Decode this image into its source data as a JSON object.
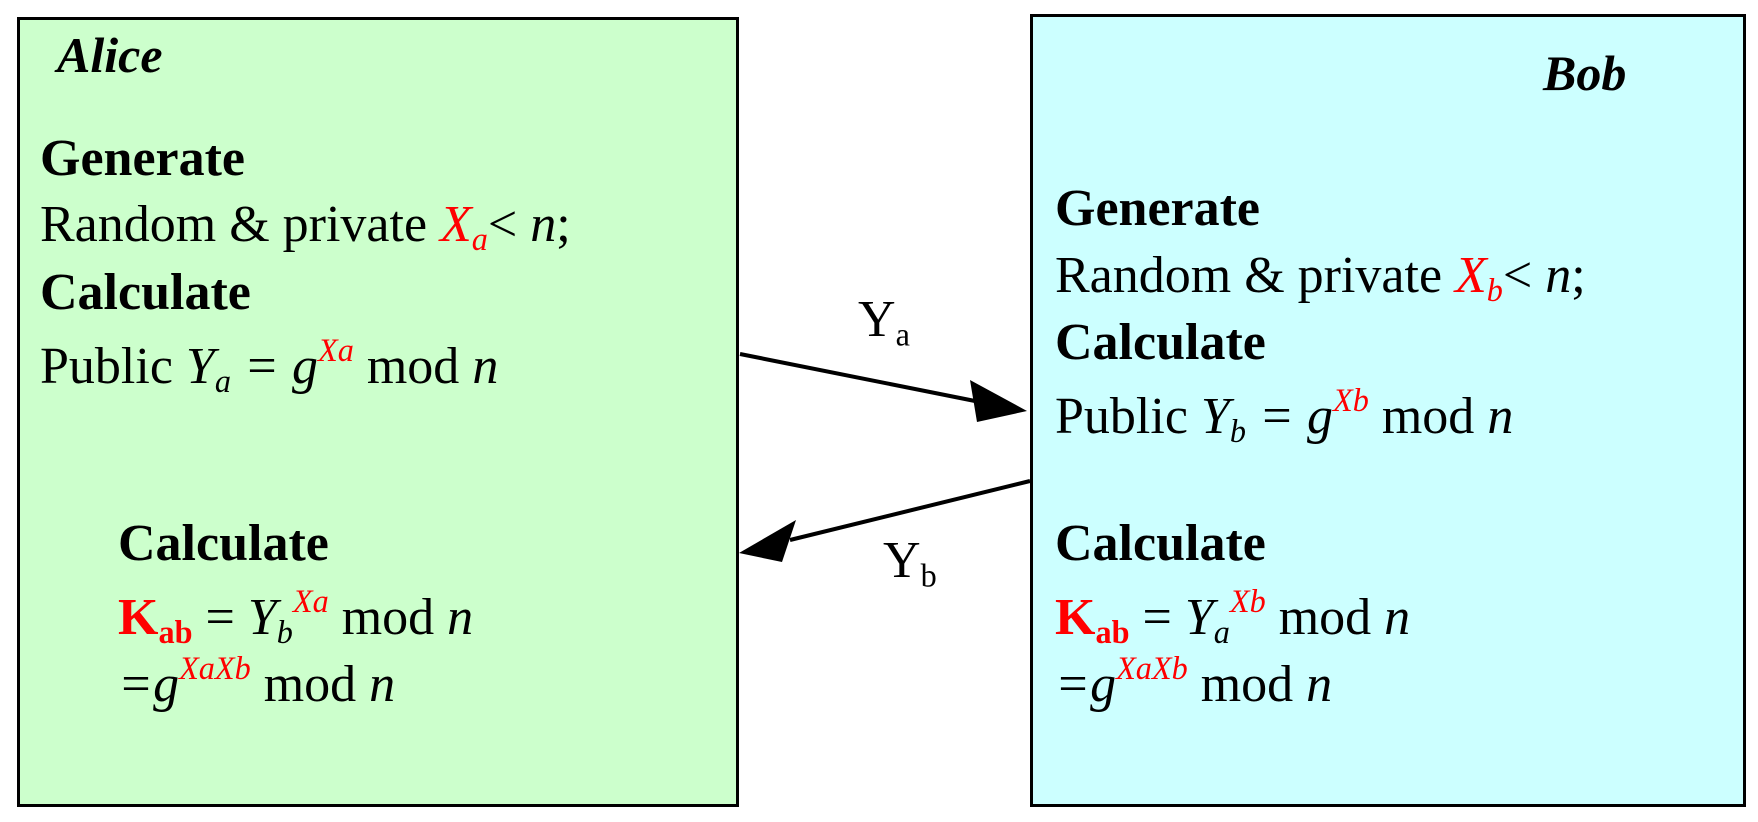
{
  "alice": {
    "name": "Alice",
    "generate_heading": "Generate",
    "random_text": "Random & private ",
    "private_var": "X",
    "private_sub": "a",
    "less_than": "< ",
    "n": "n",
    "semicolon": ";",
    "calculate_heading": "Calculate",
    "public_text": "Public ",
    "public_var": "Y",
    "public_sub": "a",
    "equals_g": " = g",
    "public_exp": "Xa",
    "mod_text": " mod ",
    "key_heading": "Calculate",
    "key_k": "K",
    "key_sub": "ab",
    "key_equals": " = ",
    "key_base": "Y",
    "key_base_sub": "b",
    "key_exp": "Xa",
    "shared_eq": "=g",
    "shared_exp": "XaXb"
  },
  "bob": {
    "name": "Bob",
    "generate_heading": "Generate",
    "random_text": "Random & private ",
    "private_var": "X",
    "private_sub": "b",
    "less_than": "< ",
    "n": "n",
    "semicolon": ";",
    "calculate_heading": "Calculate",
    "public_text": "Public ",
    "public_var": "Y",
    "public_sub": "b",
    "equals_g": " = g",
    "public_exp": "Xb",
    "mod_text": " mod ",
    "key_heading": "Calculate",
    "key_k": "K",
    "key_sub": "ab",
    "key_equals": " = ",
    "key_base": "Y",
    "key_base_sub": "a",
    "key_exp": "Xb",
    "shared_eq": "=g",
    "shared_exp": "XaXb"
  },
  "arrows": {
    "to_bob": {
      "label": "Y",
      "label_sub": "a"
    },
    "to_alice": {
      "label": "Y",
      "label_sub": "b"
    }
  },
  "colors": {
    "alice_bg": "#ccffcc",
    "bob_bg": "#ccffff",
    "highlight": "#ff0000",
    "stroke": "#000000"
  }
}
